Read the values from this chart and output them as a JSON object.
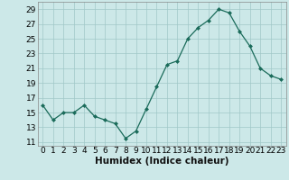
{
  "x": [
    0,
    1,
    2,
    3,
    4,
    5,
    6,
    7,
    8,
    9,
    10,
    11,
    12,
    13,
    14,
    15,
    16,
    17,
    18,
    19,
    20,
    21,
    22,
    23
  ],
  "y": [
    16,
    14,
    15,
    15,
    16,
    14.5,
    14,
    13.5,
    11.5,
    12.5,
    15.5,
    18.5,
    21.5,
    22,
    25,
    26.5,
    27.5,
    29,
    28.5,
    26,
    24,
    21,
    20,
    19.5
  ],
  "line_color": "#1a6b5a",
  "marker_color": "#1a6b5a",
  "bg_color": "#cce8e8",
  "grid_color": "#a0c8c8",
  "xlabel": "Humidex (Indice chaleur)",
  "xlim": [
    -0.5,
    23.5
  ],
  "ylim": [
    10.5,
    30
  ],
  "yticks": [
    11,
    13,
    15,
    17,
    19,
    21,
    23,
    25,
    27,
    29
  ],
  "xticks": [
    0,
    1,
    2,
    3,
    4,
    5,
    6,
    7,
    8,
    9,
    10,
    11,
    12,
    13,
    14,
    15,
    16,
    17,
    18,
    19,
    20,
    21,
    22,
    23
  ],
  "fontsize_label": 7.5,
  "fontsize_tick": 6.5
}
